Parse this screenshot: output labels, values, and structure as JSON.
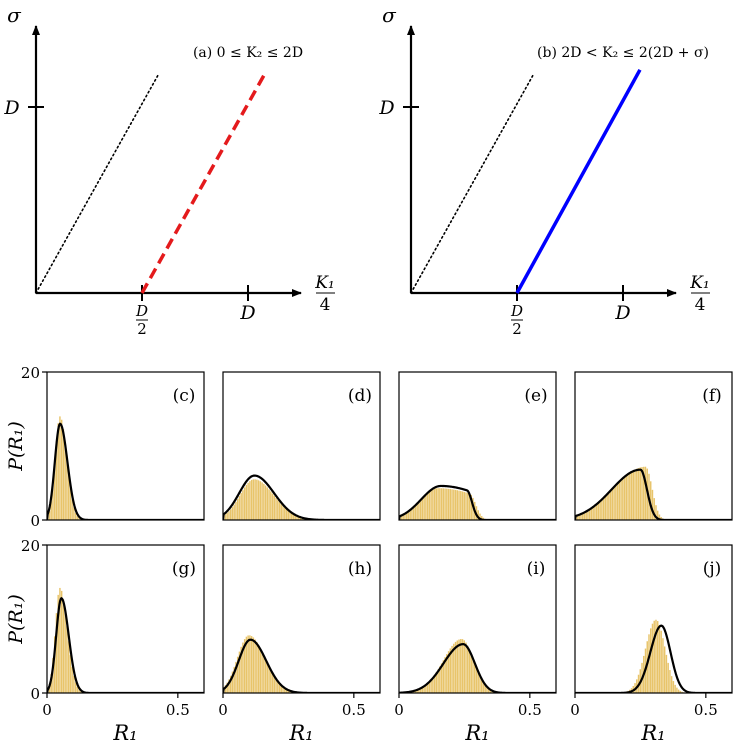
{
  "colors": {
    "axis": "#000000",
    "dashed_line": "#e41a1c",
    "solid_line": "#0000ff",
    "histogram": "#e8c46a",
    "fit_curve": "#000000"
  },
  "chart_data": [
    {
      "type": "line",
      "panel": "a",
      "annotation": "(a) 0 ≤ K₂ ≤ 2D",
      "xlabel_num": "K₁",
      "xlabel_den": "4",
      "ylabel": "σ",
      "xticks": [
        {
          "value": 0.5,
          "label_num": "D",
          "label_den": "2"
        },
        {
          "value": 1.0,
          "label": "D"
        }
      ],
      "yticks": [
        {
          "value": 1.0,
          "label": "D"
        }
      ],
      "xlim": [
        0,
        1.45
      ],
      "ylim": [
        0,
        1.55
      ],
      "series": [
        {
          "style": "dotted",
          "x": [
            0,
            0.58
          ],
          "y": [
            0,
            1.18
          ]
        },
        {
          "style": "dashed",
          "x": [
            0.5,
            1.08
          ],
          "y": [
            0,
            1.18
          ]
        }
      ]
    },
    {
      "type": "line",
      "panel": "b",
      "annotation": "(b) 2D < K₂ ≤ 2(2D + σ)",
      "xlabel_num": "K₁",
      "xlabel_den": "4",
      "ylabel": "σ",
      "xticks": [
        {
          "value": 0.5,
          "label_num": "D",
          "label_den": "2"
        },
        {
          "value": 1.0,
          "label": "D"
        }
      ],
      "yticks": [
        {
          "value": 1.0,
          "label": "D"
        }
      ],
      "xlim": [
        0,
        1.45
      ],
      "ylim": [
        0,
        1.55
      ],
      "series": [
        {
          "style": "dotted",
          "x": [
            0,
            0.58
          ],
          "y": [
            0,
            1.18
          ]
        },
        {
          "style": "solid",
          "x": [
            0.5,
            1.08
          ],
          "y": [
            0,
            1.2
          ]
        }
      ]
    },
    {
      "type": "area",
      "ylabel": "P(R₁)",
      "xlabel": "R₁",
      "xlim": [
        0,
        0.6
      ],
      "ylim": [
        0,
        20
      ],
      "xticks": [
        0,
        0.5
      ],
      "yticks": [
        0,
        20
      ],
      "panels": [
        {
          "label": "(c)",
          "row": 0,
          "col": 0,
          "hist": {
            "mu": 0.05,
            "sl": 0.018,
            "sr": 0.026,
            "h": 14.0
          },
          "curve": {
            "mu": 0.05,
            "sl": 0.02,
            "sr": 0.028,
            "h": 13.0
          }
        },
        {
          "label": "(d)",
          "row": 0,
          "col": 1,
          "hist": {
            "mu": 0.12,
            "sl": 0.055,
            "sr": 0.075,
            "h": 5.5
          },
          "curve": {
            "mu": 0.12,
            "sl": 0.058,
            "sr": 0.075,
            "h": 6.0
          }
        },
        {
          "label": "(e)",
          "row": 0,
          "col": 2,
          "hist": {
            "mu": 0.15,
            "sl": 0.07,
            "sr": 0.2,
            "h": 4.3,
            "cut": 0.27,
            "cutw": 0.025
          },
          "curve": {
            "mu": 0.16,
            "sl": 0.075,
            "sr": 0.19,
            "h": 4.6,
            "cut": 0.26,
            "cutw": 0.02
          }
        },
        {
          "label": "(f)",
          "row": 0,
          "col": 3,
          "hist": {
            "mu": 0.27,
            "sl": 0.12,
            "sr": 0.025,
            "h": 7.2
          },
          "curve": {
            "mu": 0.25,
            "sl": 0.11,
            "sr": 0.025,
            "h": 6.8
          }
        },
        {
          "label": "(g)",
          "row": 1,
          "col": 0,
          "hist": {
            "mu": 0.05,
            "sl": 0.018,
            "sr": 0.028,
            "h": 14.2
          },
          "curve": {
            "mu": 0.055,
            "sl": 0.02,
            "sr": 0.028,
            "h": 12.8
          }
        },
        {
          "label": "(h)",
          "row": 1,
          "col": 1,
          "hist": {
            "mu": 0.1,
            "sl": 0.045,
            "sr": 0.06,
            "h": 7.8
          },
          "curve": {
            "mu": 0.105,
            "sl": 0.045,
            "sr": 0.06,
            "h": 7.2
          }
        },
        {
          "label": "(i)",
          "row": 1,
          "col": 2,
          "hist": {
            "mu": 0.24,
            "sl": 0.07,
            "sr": 0.045,
            "h": 7.3
          },
          "curve": {
            "mu": 0.245,
            "sl": 0.075,
            "sr": 0.045,
            "h": 6.6
          }
        },
        {
          "label": "(j)",
          "row": 1,
          "col": 3,
          "hist": {
            "mu": 0.31,
            "sl": 0.04,
            "sr": 0.035,
            "h": 9.9
          },
          "curve": {
            "mu": 0.33,
            "sl": 0.042,
            "sr": 0.035,
            "h": 9.1
          }
        }
      ]
    }
  ]
}
